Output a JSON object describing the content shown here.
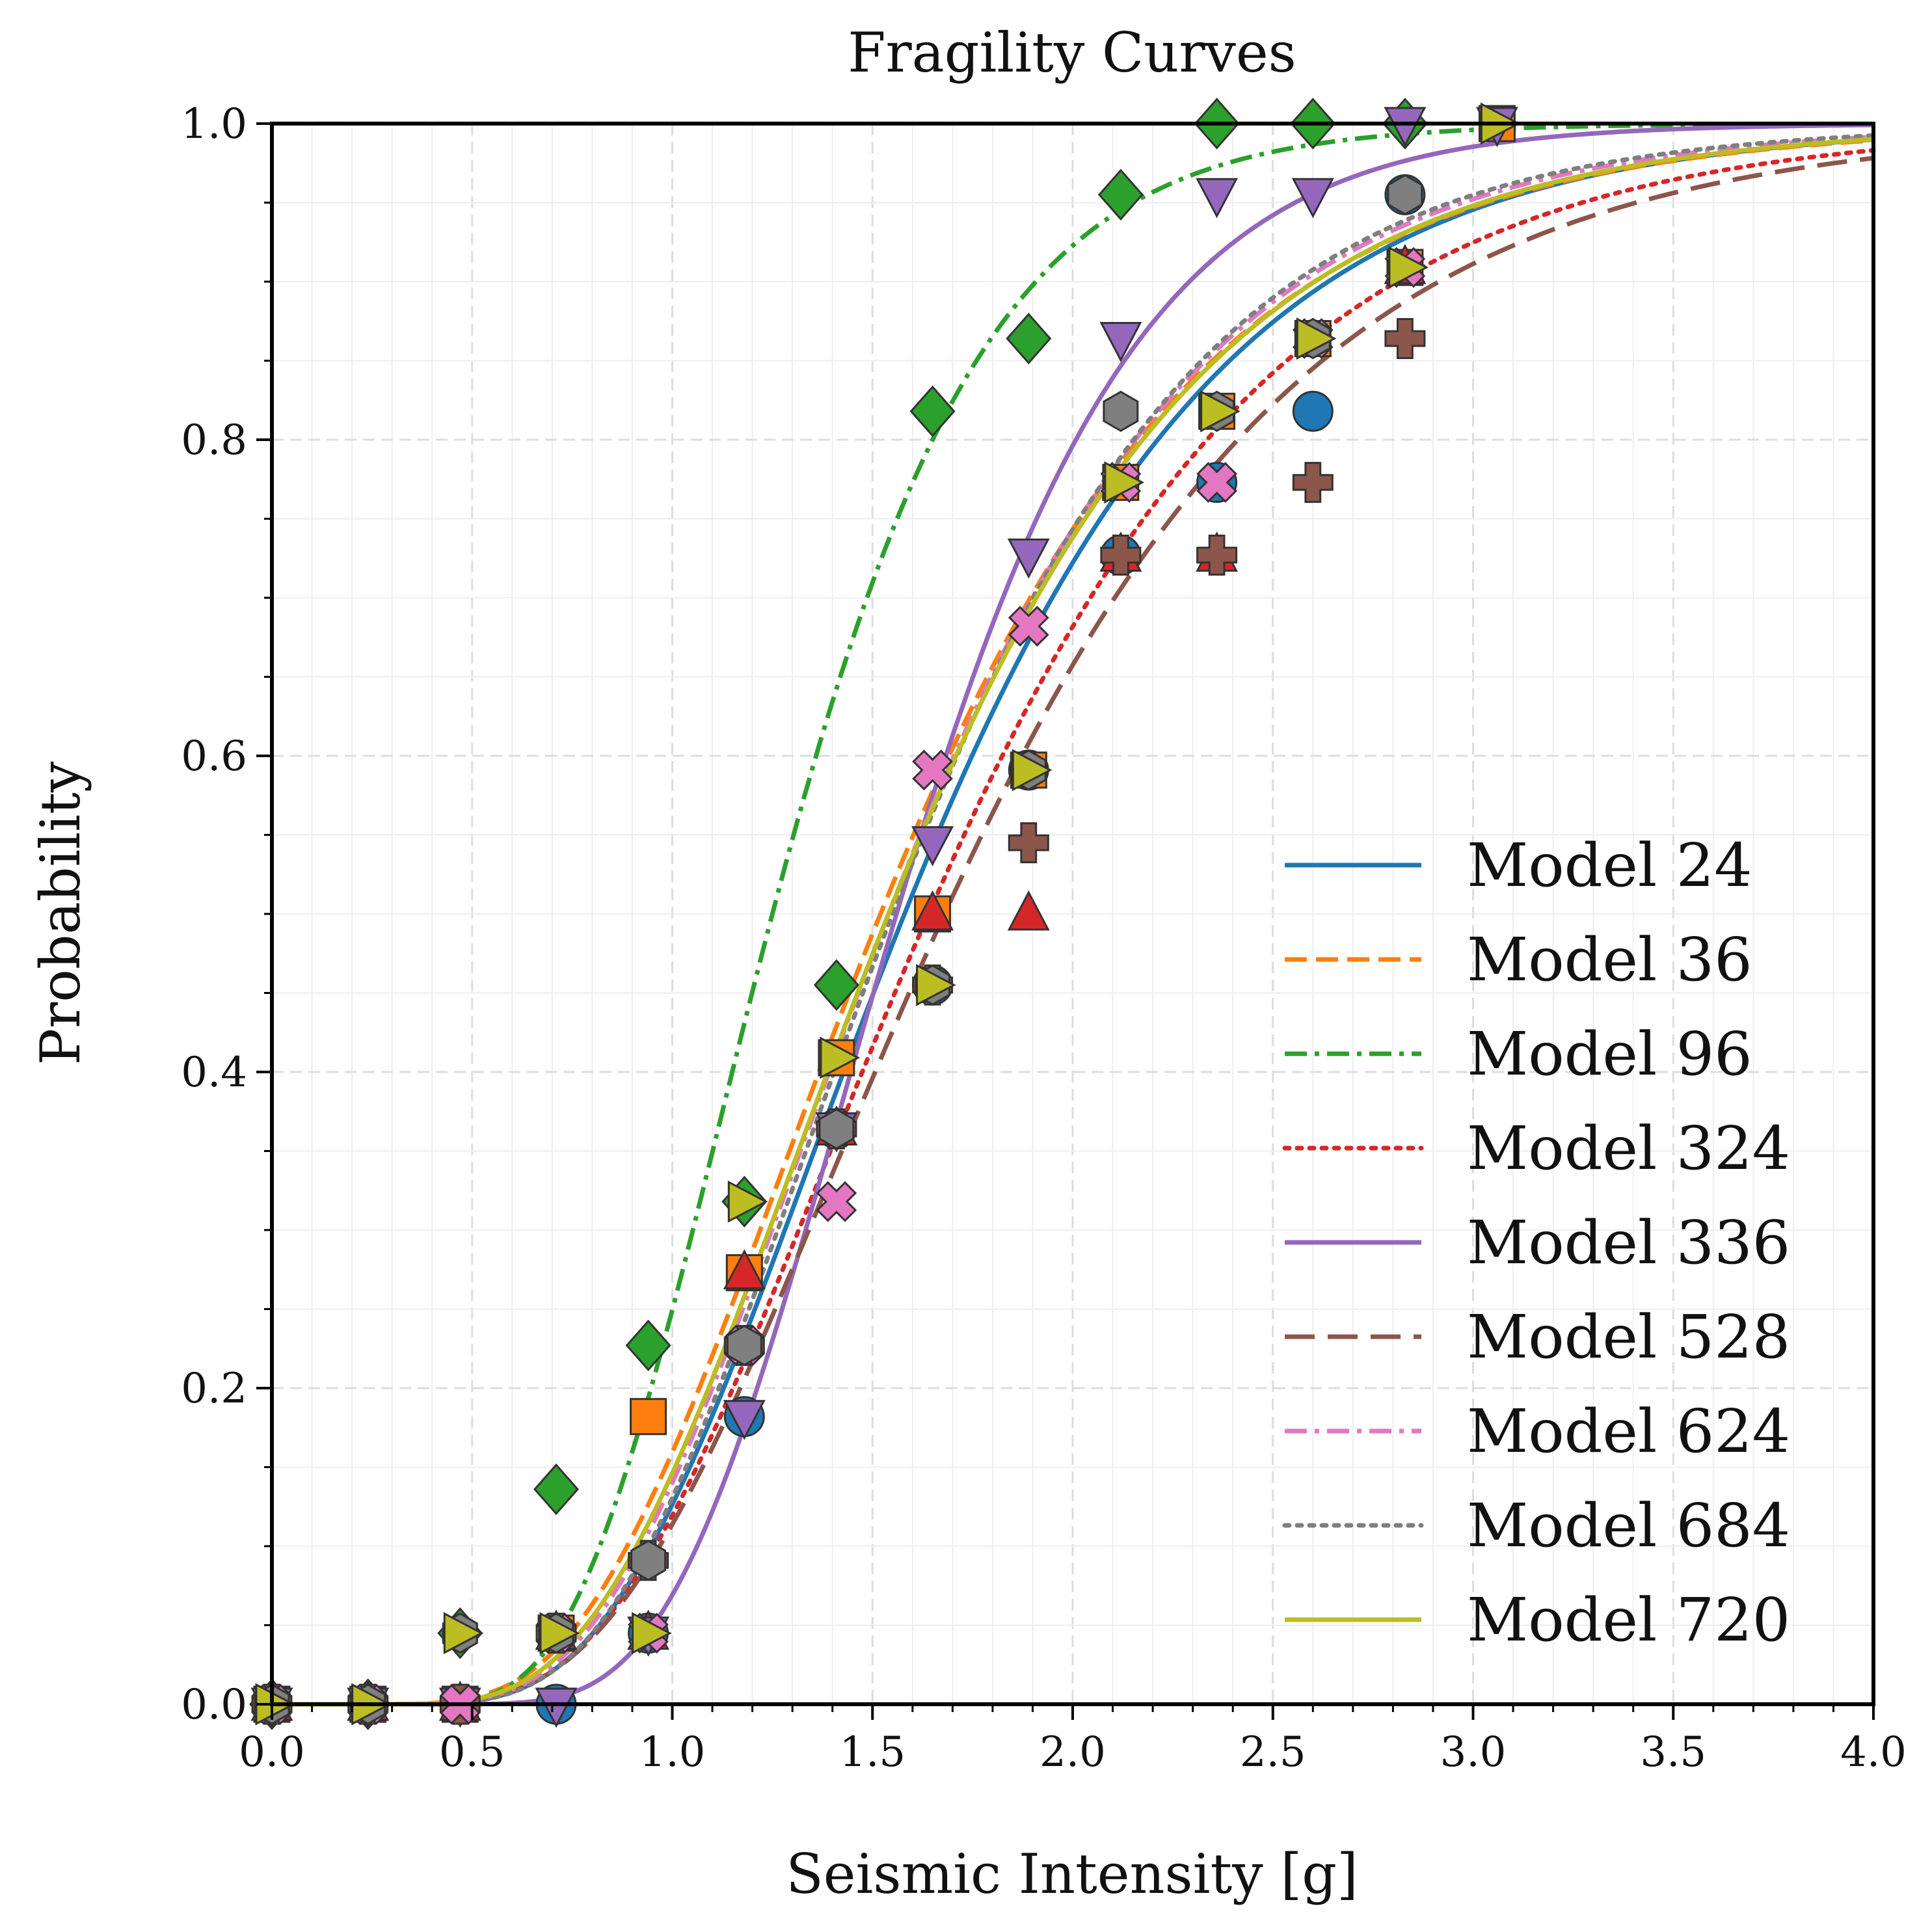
{
  "chart_data": {
    "type": "line",
    "title": "Fragility Curves",
    "xlabel": "Seismic Intensity [g]",
    "ylabel": "Probability",
    "xlim": [
      0.0,
      4.0
    ],
    "ylim": [
      0.0,
      1.0
    ],
    "x_ticks": [
      "0.0",
      "0.5",
      "1.0",
      "1.5",
      "2.0",
      "2.5",
      "3.0",
      "3.5",
      "4.0"
    ],
    "y_ticks": [
      "0.0",
      "0.2",
      "0.4",
      "0.6",
      "0.8",
      "1.0"
    ],
    "grid": true,
    "legend_position": "lower-right",
    "series": [
      {
        "name": "Model 24",
        "color": "#1f77b4",
        "dash": "solid",
        "marker": "circle",
        "median": 1.58,
        "beta": 0.4,
        "points": [
          [
            0.0,
            0.0
          ],
          [
            0.24,
            0.0
          ],
          [
            0.47,
            0.0
          ],
          [
            0.71,
            0.0
          ],
          [
            0.94,
            0.045
          ],
          [
            1.18,
            0.182
          ],
          [
            1.41,
            0.364
          ],
          [
            1.65,
            0.455
          ],
          [
            1.89,
            0.591
          ],
          [
            2.12,
            0.727
          ],
          [
            2.36,
            0.773
          ],
          [
            2.6,
            0.818
          ],
          [
            2.83,
            0.955
          ]
        ]
      },
      {
        "name": "Model 36",
        "color": "#ff7f0e",
        "dash": "dashed",
        "marker": "square",
        "median": 1.52,
        "beta": 0.42,
        "points": [
          [
            0.0,
            0.0
          ],
          [
            0.24,
            0.0
          ],
          [
            0.47,
            0.0
          ],
          [
            0.71,
            0.045
          ],
          [
            0.94,
            0.182
          ],
          [
            1.18,
            0.273
          ],
          [
            1.41,
            0.409
          ],
          [
            1.65,
            0.5
          ],
          [
            1.89,
            0.591
          ],
          [
            2.12,
            0.773
          ],
          [
            2.36,
            0.818
          ],
          [
            2.6,
            0.864
          ],
          [
            2.83,
            0.909
          ],
          [
            3.06,
            1.0
          ]
        ]
      },
      {
        "name": "Model 96",
        "color": "#2ca02c",
        "dash": "dashdot",
        "marker": "diamond",
        "median": 1.25,
        "beta": 0.33,
        "points": [
          [
            0.0,
            0.0
          ],
          [
            0.24,
            0.0
          ],
          [
            0.47,
            0.045
          ],
          [
            0.71,
            0.136
          ],
          [
            0.94,
            0.227
          ],
          [
            1.18,
            0.318
          ],
          [
            1.41,
            0.455
          ],
          [
            1.65,
            0.818
          ],
          [
            1.89,
            0.864
          ],
          [
            2.12,
            0.955
          ],
          [
            2.36,
            1.0
          ],
          [
            2.6,
            1.0
          ],
          [
            2.83,
            1.0
          ]
        ]
      },
      {
        "name": "Model 324",
        "color": "#d62728",
        "dash": "dotted",
        "marker": "triangle-up",
        "median": 1.64,
        "beta": 0.42,
        "points": [
          [
            0.0,
            0.0
          ],
          [
            0.24,
            0.0
          ],
          [
            0.47,
            0.0
          ],
          [
            0.71,
            0.045
          ],
          [
            0.94,
            0.045
          ],
          [
            1.18,
            0.273
          ],
          [
            1.41,
            0.364
          ],
          [
            1.65,
            0.5
          ],
          [
            1.89,
            0.5
          ],
          [
            2.12,
            0.727
          ],
          [
            2.36,
            0.727
          ],
          [
            2.83,
            0.909
          ]
        ]
      },
      {
        "name": "Model 336",
        "color": "#9467bd",
        "dash": "solid",
        "marker": "triangle-down",
        "median": 1.56,
        "beta": 0.3,
        "points": [
          [
            0.0,
            0.0
          ],
          [
            0.24,
            0.0
          ],
          [
            0.47,
            0.0
          ],
          [
            0.71,
            0.0
          ],
          [
            0.94,
            0.045
          ],
          [
            1.18,
            0.182
          ],
          [
            1.41,
            0.364
          ],
          [
            1.65,
            0.545
          ],
          [
            1.89,
            0.727
          ],
          [
            2.12,
            0.864
          ],
          [
            2.36,
            0.955
          ],
          [
            2.6,
            0.955
          ],
          [
            2.83,
            1.0
          ],
          [
            3.06,
            1.0
          ]
        ]
      },
      {
        "name": "Model 528",
        "color": "#8c564b",
        "dash": "longdash",
        "marker": "plus",
        "median": 1.68,
        "beta": 0.43,
        "points": [
          [
            0.0,
            0.0
          ],
          [
            0.24,
            0.0
          ],
          [
            0.47,
            0.0
          ],
          [
            0.71,
            0.045
          ],
          [
            0.94,
            0.091
          ],
          [
            1.18,
            0.227
          ],
          [
            1.41,
            0.364
          ],
          [
            1.65,
            0.455
          ],
          [
            1.89,
            0.545
          ],
          [
            2.12,
            0.727
          ],
          [
            2.36,
            0.727
          ],
          [
            2.6,
            0.773
          ],
          [
            2.83,
            0.864
          ]
        ]
      },
      {
        "name": "Model 624",
        "color": "#e377c2",
        "dash": "dashdot",
        "marker": "x",
        "median": 1.54,
        "beta": 0.4,
        "points": [
          [
            0.0,
            0.0
          ],
          [
            0.24,
            0.0
          ],
          [
            0.47,
            0.0
          ],
          [
            0.71,
            0.045
          ],
          [
            0.94,
            0.045
          ],
          [
            1.18,
            0.227
          ],
          [
            1.41,
            0.318
          ],
          [
            1.65,
            0.591
          ],
          [
            1.89,
            0.682
          ],
          [
            2.12,
            0.773
          ],
          [
            2.36,
            0.773
          ],
          [
            2.6,
            0.864
          ],
          [
            2.83,
            0.909
          ]
        ]
      },
      {
        "name": "Model 684",
        "color": "#7f7f7f",
        "dash": "dotted",
        "marker": "hexagon",
        "median": 1.55,
        "beta": 0.39,
        "points": [
          [
            0.0,
            0.0
          ],
          [
            0.24,
            0.0
          ],
          [
            0.47,
            0.045
          ],
          [
            0.71,
            0.045
          ],
          [
            0.94,
            0.091
          ],
          [
            1.18,
            0.227
          ],
          [
            1.41,
            0.364
          ],
          [
            1.65,
            0.455
          ],
          [
            1.89,
            0.591
          ],
          [
            2.12,
            0.818
          ],
          [
            2.36,
            0.818
          ],
          [
            2.6,
            0.864
          ],
          [
            2.83,
            0.955
          ]
        ]
      },
      {
        "name": "Model 720",
        "color": "#bcbd22",
        "dash": "solid",
        "marker": "triangle-right",
        "median": 1.54,
        "beta": 0.41,
        "points": [
          [
            0.0,
            0.0
          ],
          [
            0.24,
            0.0
          ],
          [
            0.47,
            0.045
          ],
          [
            0.71,
            0.045
          ],
          [
            0.94,
            0.045
          ],
          [
            1.18,
            0.318
          ],
          [
            1.41,
            0.409
          ],
          [
            1.65,
            0.455
          ],
          [
            1.89,
            0.591
          ],
          [
            2.12,
            0.773
          ],
          [
            2.36,
            0.818
          ],
          [
            2.6,
            0.864
          ],
          [
            2.83,
            0.909
          ],
          [
            3.06,
            1.0
          ]
        ]
      }
    ]
  }
}
